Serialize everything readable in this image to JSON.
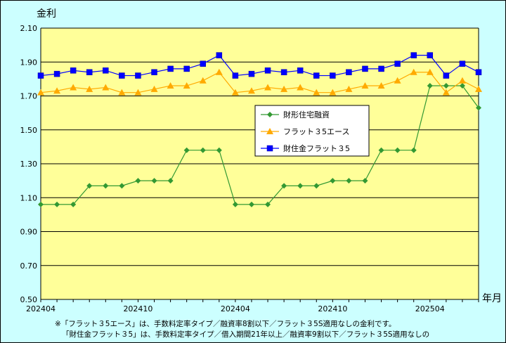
{
  "chart_data": {
    "type": "line",
    "ylabel": "金利",
    "xlabel": "年月",
    "ylim": [
      0.5,
      2.1
    ],
    "y_ticks": [
      "2.10",
      "1.90",
      "1.70",
      "1.50",
      "1.30",
      "1.10",
      "0.90",
      "0.70",
      "0.50"
    ],
    "y_tick_values": [
      2.1,
      1.9,
      1.7,
      1.5,
      1.3,
      1.1,
      0.9,
      0.7,
      0.5
    ],
    "x_tick_labels": [
      {
        "index": 0,
        "label": "202404"
      },
      {
        "index": 6,
        "label": "202410"
      },
      {
        "index": 12,
        "label": "202404"
      },
      {
        "index": 18,
        "label": "202410"
      },
      {
        "index": 24,
        "label": "202504"
      }
    ],
    "point_count": 28,
    "series": [
      {
        "name": "財形住宅融資",
        "color": "#339933",
        "marker": "diamond",
        "values": [
          1.06,
          1.06,
          1.06,
          1.17,
          1.17,
          1.17,
          1.2,
          1.2,
          1.2,
          1.38,
          1.38,
          1.38,
          1.06,
          1.06,
          1.06,
          1.17,
          1.17,
          1.17,
          1.2,
          1.2,
          1.2,
          1.38,
          1.38,
          1.38,
          1.76,
          1.76,
          1.76,
          1.63
        ]
      },
      {
        "name": "フラット３5エース",
        "color": "#ffaa00",
        "marker": "triangle",
        "values": [
          1.72,
          1.73,
          1.75,
          1.74,
          1.75,
          1.72,
          1.72,
          1.74,
          1.76,
          1.76,
          1.79,
          1.84,
          1.72,
          1.73,
          1.75,
          1.74,
          1.75,
          1.72,
          1.72,
          1.74,
          1.76,
          1.76,
          1.79,
          1.84,
          1.84,
          1.72,
          1.79,
          1.74
        ]
      },
      {
        "name": "財住金フラット３5",
        "color": "#0000ff",
        "marker": "square",
        "values": [
          1.82,
          1.83,
          1.85,
          1.84,
          1.85,
          1.82,
          1.82,
          1.84,
          1.86,
          1.86,
          1.89,
          1.94,
          1.82,
          1.83,
          1.85,
          1.84,
          1.85,
          1.82,
          1.82,
          1.84,
          1.86,
          1.86,
          1.89,
          1.94,
          1.94,
          1.82,
          1.89,
          1.84
        ]
      }
    ],
    "legend_placement": "center-right",
    "colors": {
      "background": "#ccffff",
      "plot_area": "#ffff99",
      "gridline": "#000000"
    }
  },
  "notes": {
    "line1": "※「フラット３5エース」は、手数料定率タイプ／融資率8割以下／フラット３5S適用なしの金利です。",
    "line2": "「財住金フラット３5」は、手数料定率タイプ／借入期間21年以上／融資率9割以下／フラット３5S適用なしの"
  }
}
